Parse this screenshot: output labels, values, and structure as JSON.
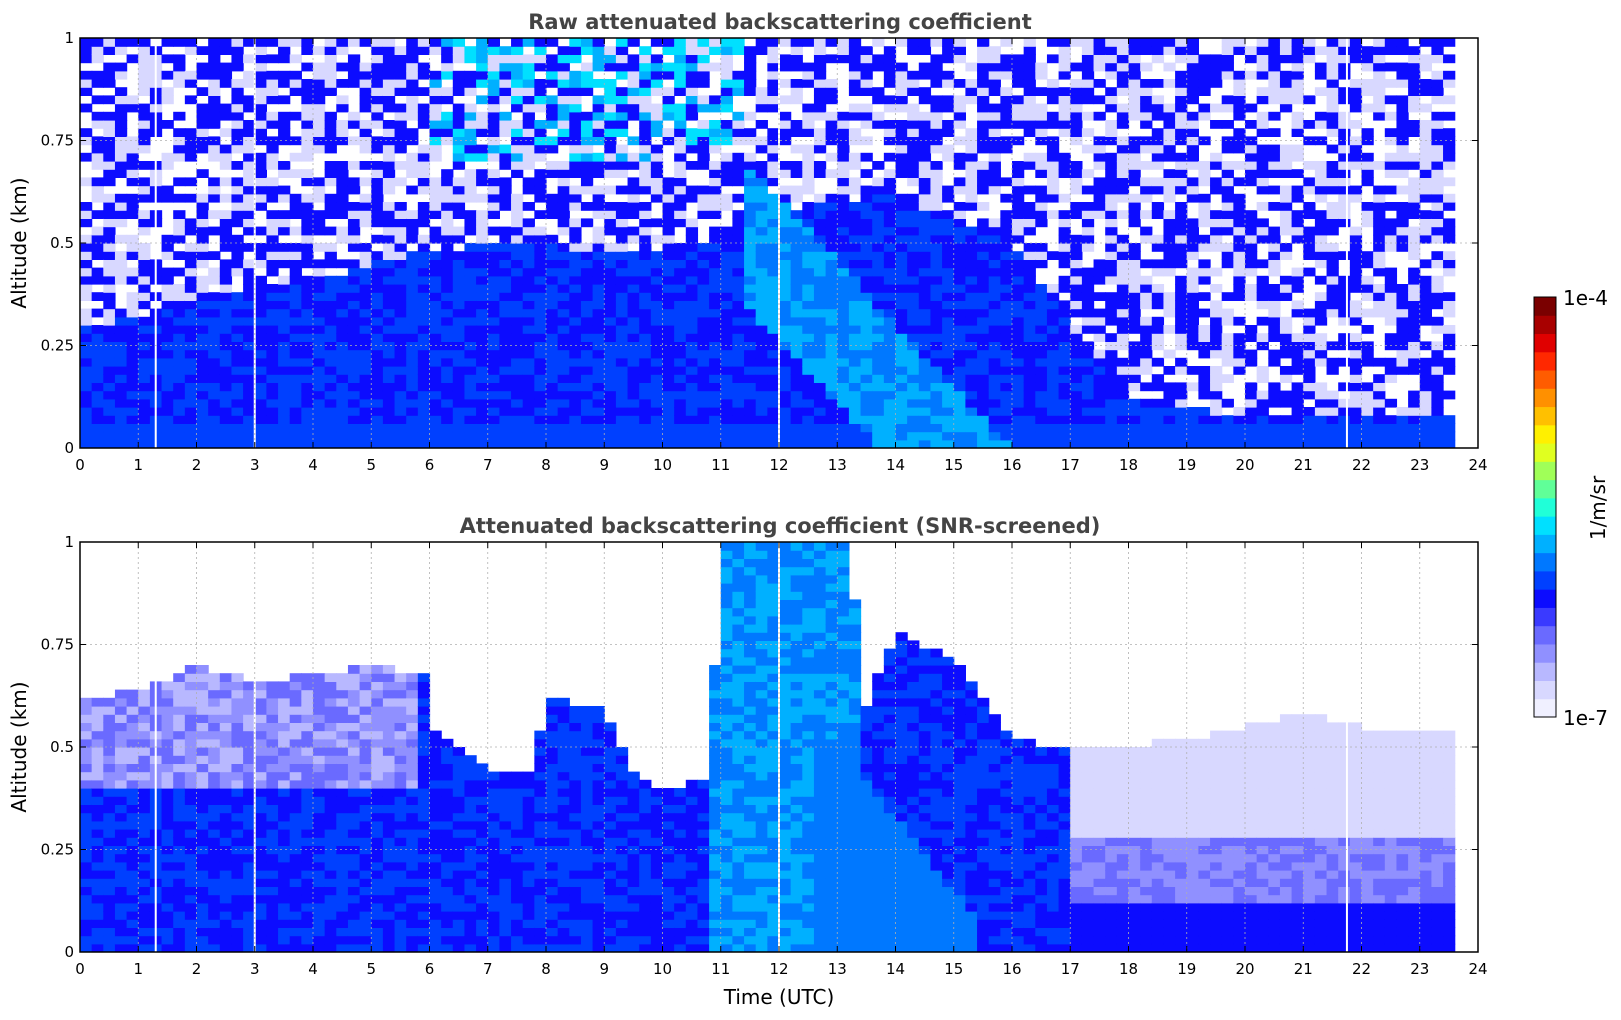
{
  "chart_data": [
    {
      "type": "heatmap",
      "title": "Raw attenuated backscattering coefficient",
      "xlabel": "",
      "ylabel": "Altitude (km)",
      "xlim": [
        0,
        24
      ],
      "ylim": [
        0,
        1
      ],
      "x_ticks": [
        "0",
        "1",
        "2",
        "3",
        "4",
        "5",
        "6",
        "7",
        "8",
        "9",
        "10",
        "11",
        "12",
        "13",
        "14",
        "15",
        "16",
        "17",
        "18",
        "19",
        "20",
        "21",
        "22",
        "23",
        "24"
      ],
      "y_ticks": [
        "0",
        "0.25",
        "0.5",
        "0.75",
        "1"
      ],
      "grid": true,
      "data_end_hour": 23.6,
      "gap_hours": [
        1.3,
        3.0,
        12.0,
        21.75
      ],
      "aerosol_layer_top_km": [
        [
          0,
          0.3
        ],
        [
          1,
          0.32
        ],
        [
          2,
          0.36
        ],
        [
          3,
          0.38
        ],
        [
          4,
          0.4
        ],
        [
          5,
          0.45
        ],
        [
          6,
          0.48
        ],
        [
          7,
          0.5
        ],
        [
          8,
          0.5
        ],
        [
          9,
          0.48
        ],
        [
          10,
          0.47
        ],
        [
          11,
          0.5
        ],
        [
          12,
          0.58
        ],
        [
          13,
          0.6
        ],
        [
          14,
          0.62
        ],
        [
          15,
          0.55
        ],
        [
          16,
          0.5
        ],
        [
          17,
          0.3
        ],
        [
          18,
          0.12
        ],
        [
          19,
          0.1
        ],
        [
          20,
          0.08
        ],
        [
          21,
          0.08
        ],
        [
          22,
          0.08
        ],
        [
          23,
          0.08
        ],
        [
          23.6,
          0.08
        ]
      ],
      "enhanced_band": [
        {
          "start_hour": 11.4,
          "top_km": 0.7,
          "end_hour_at_ground": 16.0
        }
      ],
      "colorbar": {
        "min": "1e-7",
        "max": "1e-4",
        "unit": "1/m/sr"
      }
    },
    {
      "type": "heatmap",
      "title": "Attenuated backscattering coefficient (SNR-screened)",
      "xlabel": "Time (UTC)",
      "ylabel": "Altitude (km)",
      "xlim": [
        0,
        24
      ],
      "ylim": [
        0,
        1
      ],
      "x_ticks": [
        "0",
        "1",
        "2",
        "3",
        "4",
        "5",
        "6",
        "7",
        "8",
        "9",
        "10",
        "11",
        "12",
        "13",
        "14",
        "15",
        "16",
        "17",
        "18",
        "19",
        "20",
        "21",
        "22",
        "23",
        "24"
      ],
      "y_ticks": [
        "0",
        "0.25",
        "0.5",
        "0.75",
        "1"
      ],
      "grid": true,
      "data_end_hour": 23.6,
      "gap_hours": [
        1.3,
        3.0,
        12.0,
        21.75
      ],
      "screened_top_km": [
        [
          0,
          0.62
        ],
        [
          1,
          0.64
        ],
        [
          2,
          0.7
        ],
        [
          3,
          0.66
        ],
        [
          4,
          0.68
        ],
        [
          5,
          0.7
        ],
        [
          6,
          0.68
        ],
        [
          6.05,
          0.55
        ],
        [
          7,
          0.45
        ],
        [
          7.8,
          0.45
        ],
        [
          8,
          0.62
        ],
        [
          9,
          0.6
        ],
        [
          9.5,
          0.45
        ],
        [
          10,
          0.4
        ],
        [
          10.8,
          0.42
        ],
        [
          11,
          1.0
        ],
        [
          13.2,
          1.0
        ],
        [
          13.5,
          0.6
        ],
        [
          14,
          0.78
        ],
        [
          15,
          0.72
        ],
        [
          16,
          0.52
        ],
        [
          17,
          0.5
        ],
        [
          18,
          0.5
        ],
        [
          19,
          0.52
        ],
        [
          20,
          0.55
        ],
        [
          21,
          0.58
        ],
        [
          22,
          0.55
        ],
        [
          23,
          0.55
        ],
        [
          23.6,
          0.55
        ]
      ],
      "colorbar": {
        "min": "1e-7",
        "max": "1e-4",
        "unit": "1/m/sr"
      }
    }
  ],
  "colorbar": {
    "max_label": "1e-4",
    "min_label": "1e-7",
    "unit_label": "1/m/sr",
    "colors": [
      "#f0f0ff",
      "#d8d8ff",
      "#b8b8ff",
      "#9090ff",
      "#6a6aff",
      "#3a3aff",
      "#0c0cff",
      "#0040ff",
      "#0078ff",
      "#00b0ff",
      "#00e0ff",
      "#20ffd8",
      "#60ff98",
      "#a0ff58",
      "#e0ff20",
      "#fff000",
      "#ffc000",
      "#ff9000",
      "#ff5c00",
      "#ff2800",
      "#e00000",
      "#a80000",
      "#7a0000"
    ]
  }
}
